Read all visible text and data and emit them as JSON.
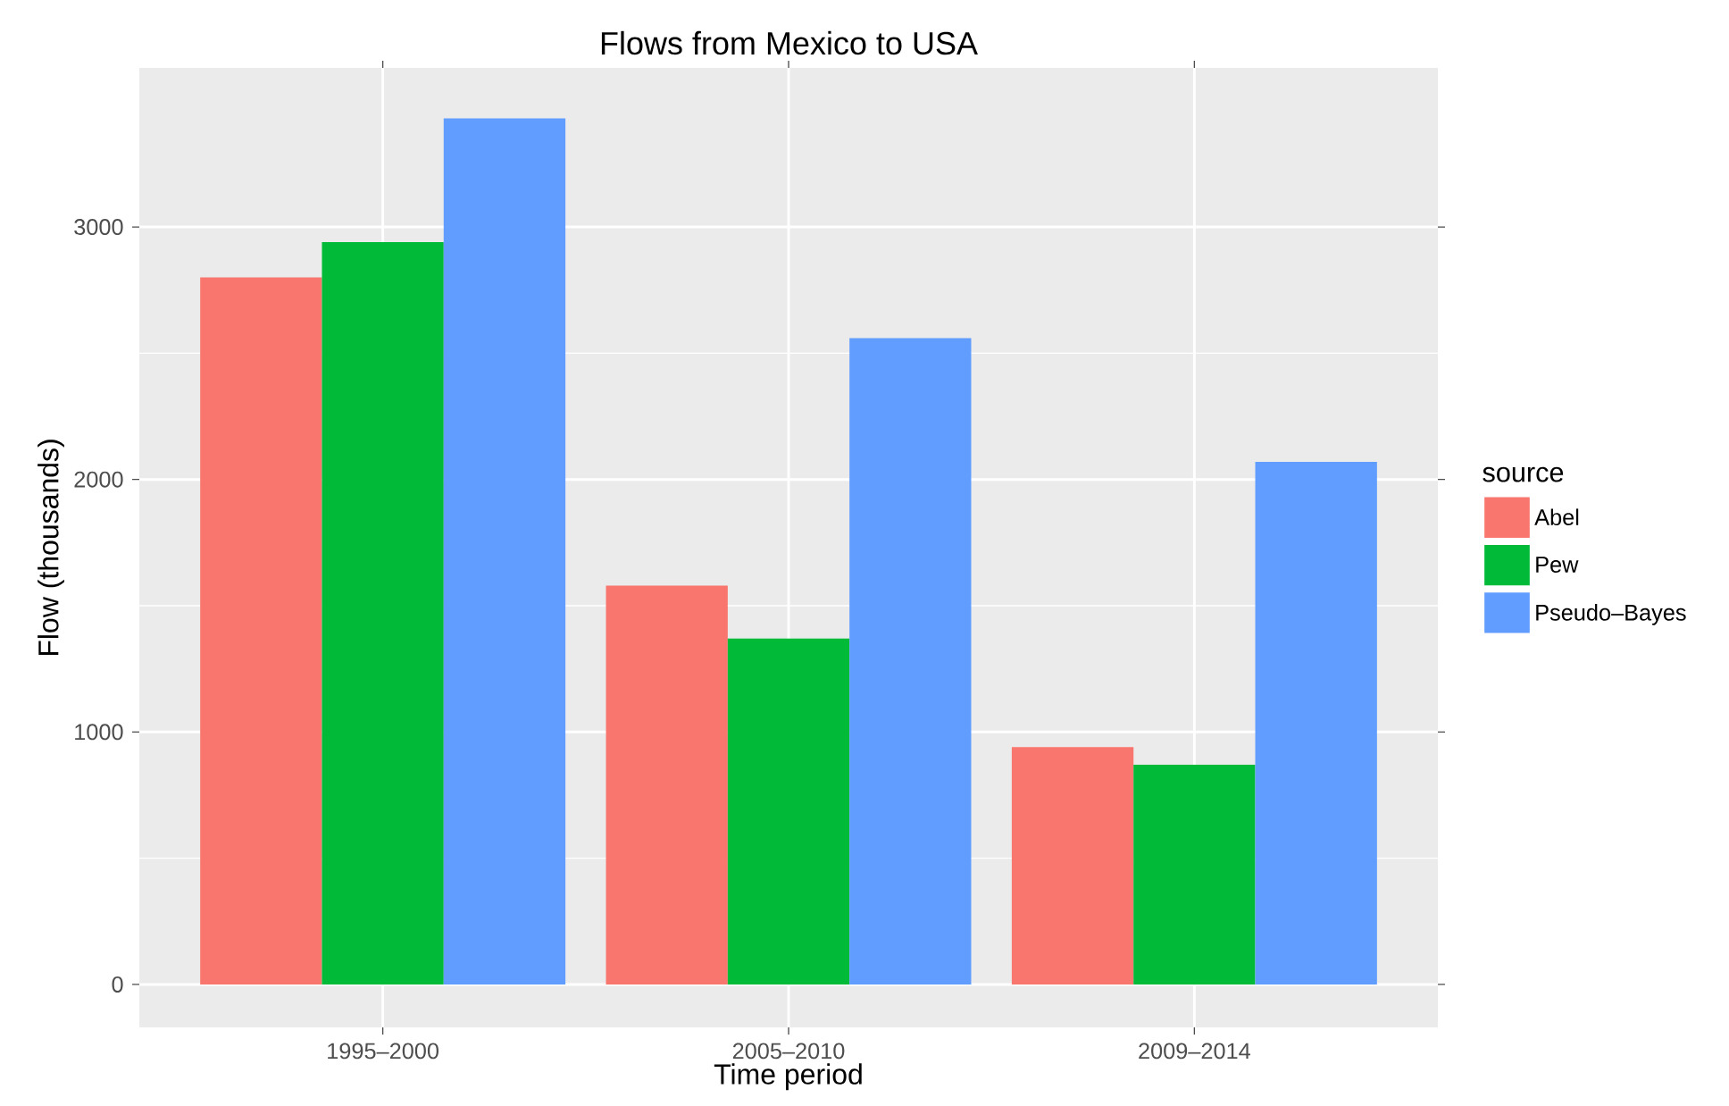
{
  "chart_data": {
    "type": "bar",
    "title": "Flows from Mexico to USA",
    "xlabel": "Time period",
    "ylabel": "Flow (thousands)",
    "legend_title": "source",
    "categories": [
      "1995–2000",
      "2005–2010",
      "2009–2014"
    ],
    "series": [
      {
        "name": "Abel",
        "color": "#f8766d",
        "values": [
          2800,
          1580,
          940
        ]
      },
      {
        "name": "Pew",
        "color": "#00ba38",
        "values": [
          2940,
          1370,
          870
        ]
      },
      {
        "name": "Pseudo–Bayes",
        "color": "#619cff",
        "values": [
          3430,
          2560,
          2070
        ]
      }
    ],
    "ylim": [
      -170,
      3630
    ],
    "yticks": [
      0,
      1000,
      2000,
      3000
    ],
    "grid": true,
    "legend": "right"
  }
}
